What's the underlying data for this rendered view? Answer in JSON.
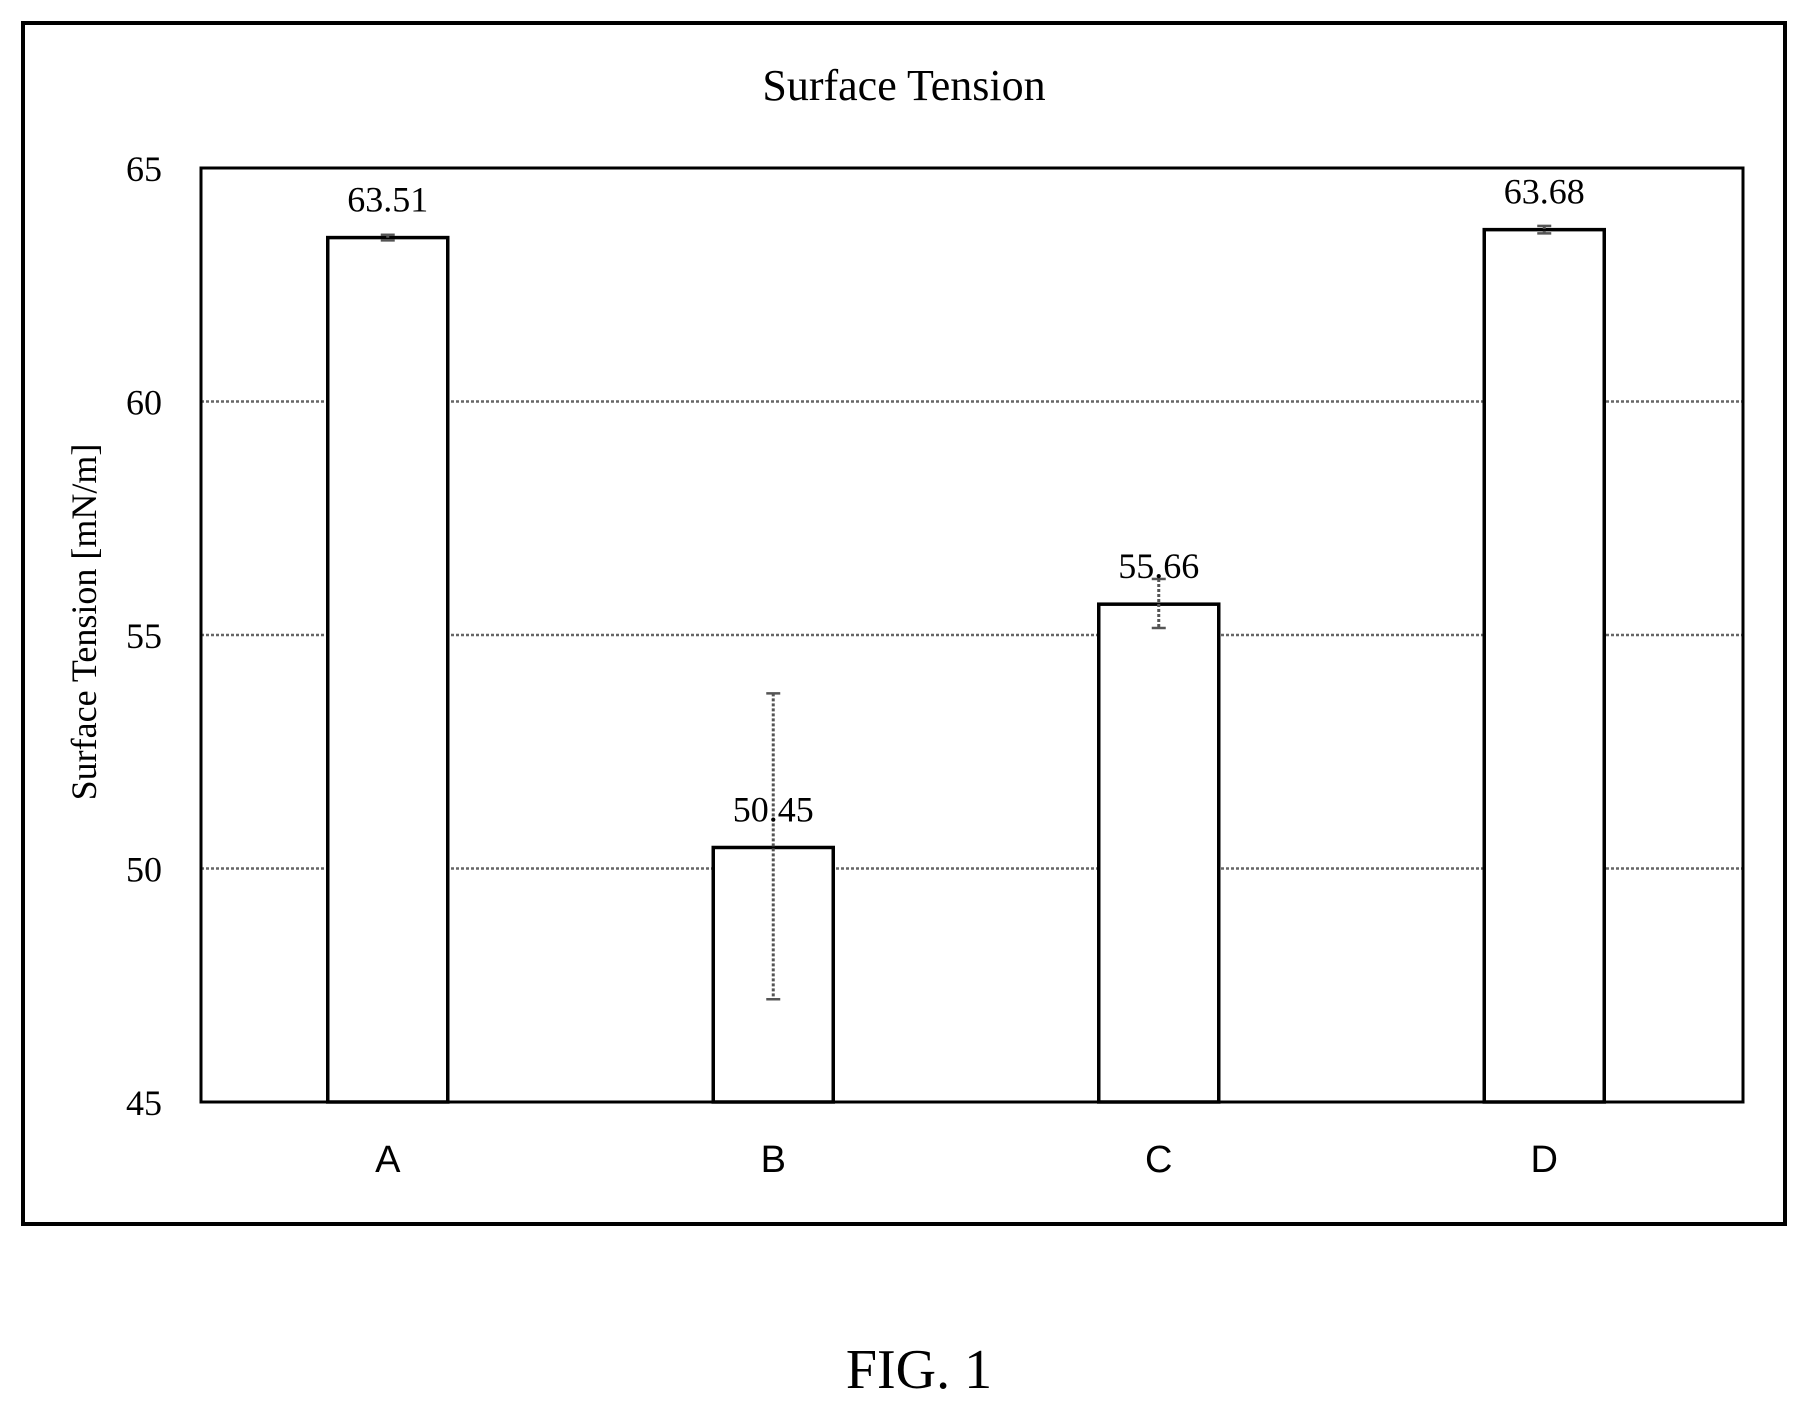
{
  "figure_label": "FIG. 1",
  "chart_data": {
    "type": "bar",
    "title": "Surface Tension",
    "xlabel": "",
    "ylabel": "Surface Tension [mN/m]",
    "categories": [
      "A",
      "B",
      "C",
      "D"
    ],
    "values": [
      63.51,
      50.45,
      55.66,
      63.68
    ],
    "data_labels": [
      "63.51",
      "50.45",
      "55.66",
      "63.68"
    ],
    "error_bars": [
      {
        "low": 63.45,
        "high": 63.57
      },
      {
        "low": 47.2,
        "high": 53.75
      },
      {
        "low": 55.15,
        "high": 56.2
      },
      {
        "low": 63.6,
        "high": 63.76
      }
    ],
    "ylim": [
      45,
      65
    ],
    "yticks": [
      45,
      50,
      55,
      60,
      65
    ],
    "grid": true,
    "grid_style": "dotted",
    "legend": "none",
    "colors": {
      "bar_fill": "#ffffff",
      "bar_stroke": "#000000",
      "grid": "#666666",
      "frame": "#000000"
    }
  }
}
